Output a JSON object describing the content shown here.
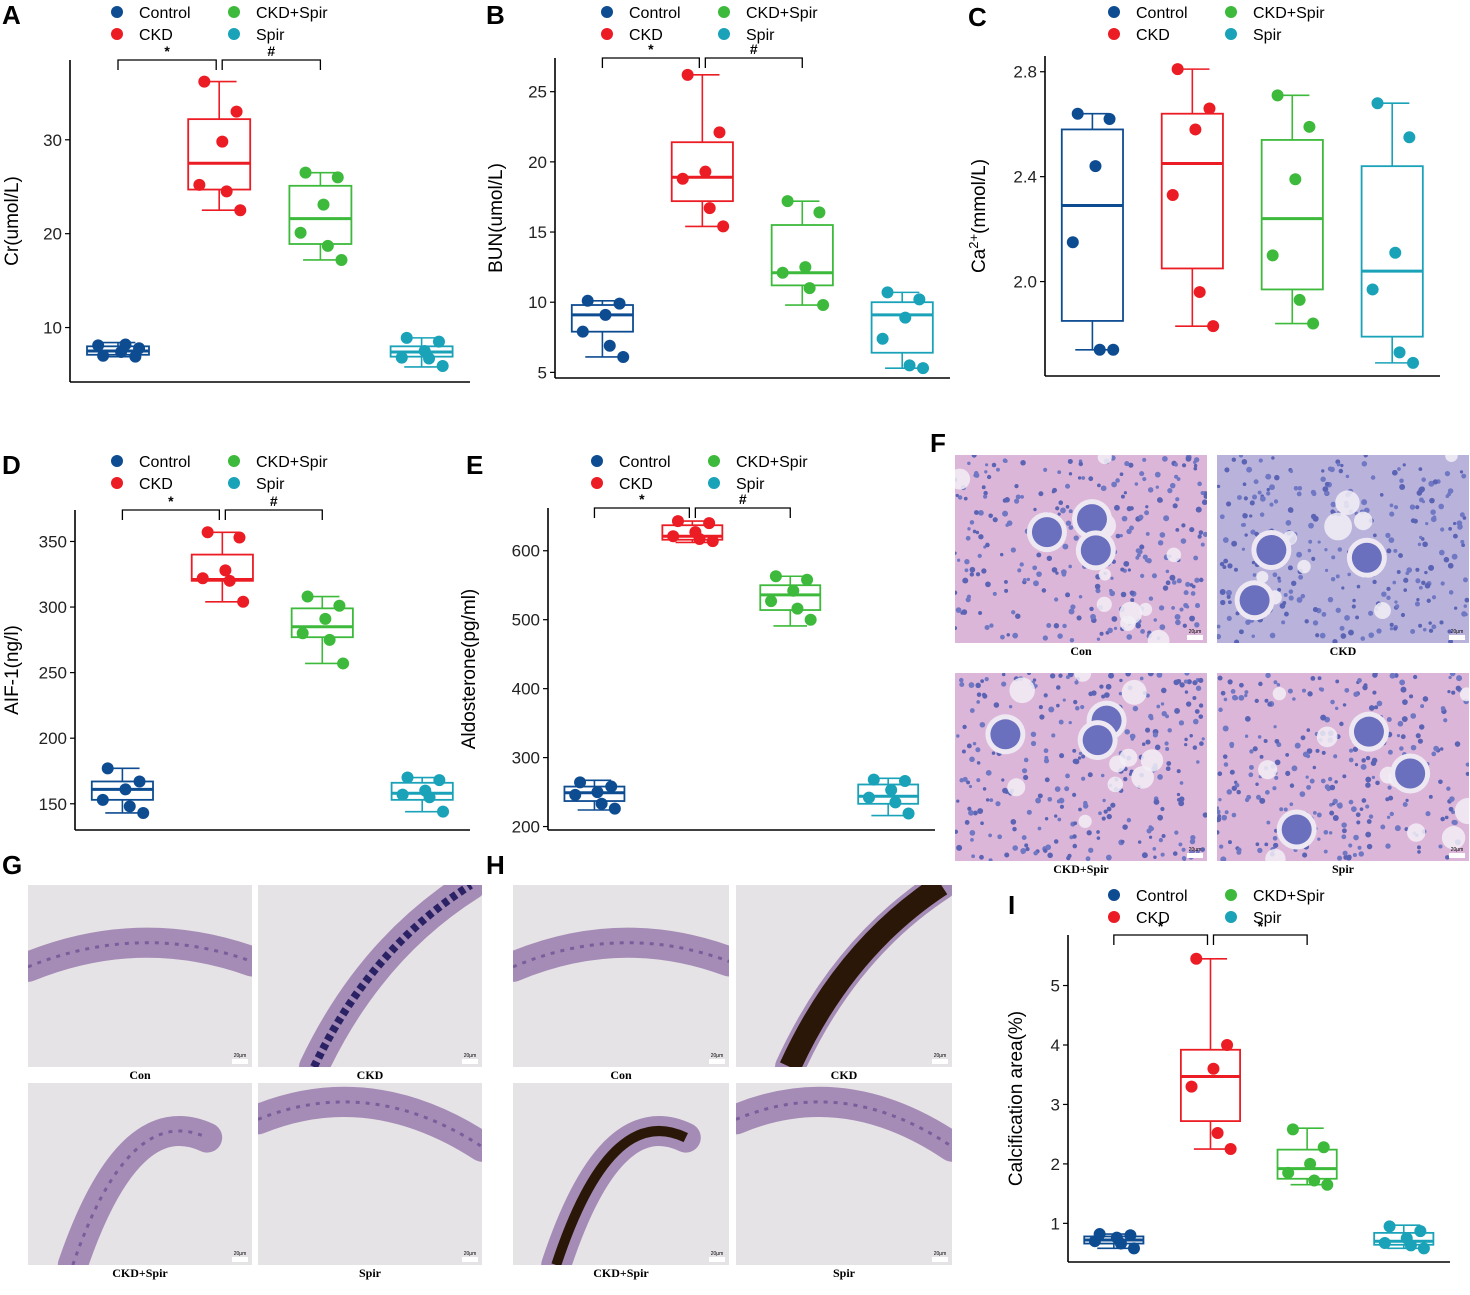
{
  "legend": {
    "groups": [
      "Control",
      "CKD",
      "CKD+Spir",
      "Spir"
    ],
    "colors": [
      "#0e4c92",
      "#ec1c24",
      "#3dba3c",
      "#1aa2b9"
    ]
  },
  "panels": {
    "A": "A",
    "B": "B",
    "C": "C",
    "D": "D",
    "E": "E",
    "F": "F",
    "G": "G",
    "H": "H",
    "I": "I"
  },
  "chart_data": [
    {
      "id": "A",
      "type": "box",
      "ylabel": "Cr(umol/L)",
      "ylim": [
        4.2,
        38.5
      ],
      "yticks": [
        10,
        20,
        30
      ],
      "groups": [
        {
          "name": "Control",
          "min": 6.9,
          "q1": 7.1,
          "median": 7.5,
          "q3": 8.0,
          "max": 8.4,
          "points": [
            7.0,
            6.9,
            7.4,
            8.1,
            8.2,
            7.8
          ]
        },
        {
          "name": "CKD",
          "min": 22.5,
          "q1": 24.7,
          "median": 27.5,
          "q3": 32.2,
          "max": 36.2,
          "points": [
            36.2,
            33.0,
            29.8,
            25.2,
            24.5,
            22.5
          ]
        },
        {
          "name": "CKD+Spir",
          "min": 17.2,
          "q1": 18.9,
          "median": 21.6,
          "q3": 25.1,
          "max": 26.5,
          "points": [
            26.5,
            26.0,
            23.1,
            20.1,
            18.7,
            17.2
          ]
        },
        {
          "name": "Spir",
          "min": 5.8,
          "q1": 6.9,
          "median": 7.4,
          "q3": 8.0,
          "max": 8.9,
          "points": [
            8.9,
            8.5,
            7.5,
            6.8,
            6.7,
            5.9
          ]
        }
      ],
      "annotations": [
        {
          "from": "Control",
          "to": "CKD",
          "label": "*"
        },
        {
          "from": "CKD",
          "to": "CKD+Spir",
          "label": "#"
        }
      ]
    },
    {
      "id": "B",
      "type": "box",
      "ylabel": "BUN(umol/L)",
      "ylim": [
        4.6,
        27.4
      ],
      "yticks": [
        5,
        10,
        15,
        20,
        25
      ],
      "groups": [
        {
          "name": "Control",
          "min": 6.1,
          "q1": 7.9,
          "median": 9.1,
          "q3": 9.8,
          "max": 10.1,
          "points": [
            10.1,
            9.9,
            9.1,
            7.9,
            6.9,
            6.1
          ]
        },
        {
          "name": "CKD",
          "min": 15.4,
          "q1": 17.2,
          "median": 18.9,
          "q3": 21.4,
          "max": 26.2,
          "points": [
            26.2,
            22.1,
            19.3,
            18.8,
            16.7,
            15.4
          ]
        },
        {
          "name": "CKD+Spir",
          "min": 9.8,
          "q1": 11.2,
          "median": 12.1,
          "q3": 15.5,
          "max": 17.2,
          "points": [
            17.2,
            16.4,
            12.5,
            12.1,
            11.0,
            9.8
          ]
        },
        {
          "name": "Spir",
          "min": 5.3,
          "q1": 6.4,
          "median": 9.1,
          "q3": 10.0,
          "max": 10.7,
          "points": [
            10.7,
            10.2,
            8.9,
            7.4,
            5.5,
            5.3
          ]
        }
      ],
      "annotations": [
        {
          "from": "Control",
          "to": "CKD",
          "label": "*"
        },
        {
          "from": "CKD",
          "to": "CKD+Spir",
          "label": "#"
        }
      ]
    },
    {
      "id": "C",
      "type": "box",
      "ylabel": "Ca2+(mmol/L)",
      "ylabel_base": "Ca",
      "ylabel_sup": "2+",
      "ylabel_rest": "(mmol/L)",
      "ylim": [
        1.64,
        2.86
      ],
      "yticks": [
        "2.0",
        "2.4",
        "2.8"
      ],
      "groups": [
        {
          "name": "Control",
          "min": 1.74,
          "q1": 1.85,
          "median": 2.29,
          "q3": 2.58,
          "max": 2.64,
          "points": [
            2.64,
            2.62,
            2.44,
            2.15,
            1.74,
            1.74
          ]
        },
        {
          "name": "CKD",
          "min": 1.83,
          "q1": 2.05,
          "median": 2.45,
          "q3": 2.64,
          "max": 2.81,
          "points": [
            2.81,
            2.66,
            2.58,
            2.33,
            1.96,
            1.83
          ]
        },
        {
          "name": "CKD+Spir",
          "min": 1.84,
          "q1": 1.97,
          "median": 2.24,
          "q3": 2.54,
          "max": 2.71,
          "points": [
            2.71,
            2.59,
            2.39,
            2.1,
            1.93,
            1.84
          ]
        },
        {
          "name": "Spir",
          "min": 1.69,
          "q1": 1.79,
          "median": 2.04,
          "q3": 2.44,
          "max": 2.68,
          "points": [
            2.68,
            2.55,
            2.11,
            1.97,
            1.73,
            1.69
          ]
        }
      ],
      "annotations": []
    },
    {
      "id": "D",
      "type": "box",
      "ylabel": "AIF-1(ng/l)",
      "ylim": [
        130,
        374
      ],
      "yticks": [
        150,
        200,
        250,
        300,
        350
      ],
      "groups": [
        {
          "name": "Control",
          "min": 143,
          "q1": 153,
          "median": 161,
          "q3": 167,
          "max": 177,
          "points": [
            177,
            167,
            161,
            153,
            148,
            143
          ]
        },
        {
          "name": "CKD",
          "min": 304,
          "q1": 320,
          "median": 321,
          "q3": 340,
          "max": 357,
          "points": [
            357,
            353,
            328,
            322,
            320,
            304
          ]
        },
        {
          "name": "CKD+Spir",
          "min": 257,
          "q1": 277,
          "median": 285,
          "q3": 299,
          "max": 308,
          "points": [
            308,
            301,
            291,
            280,
            275,
            257
          ]
        },
        {
          "name": "Spir",
          "min": 144,
          "q1": 153,
          "median": 158,
          "q3": 166,
          "max": 170,
          "points": [
            170,
            168,
            160,
            157,
            155,
            144
          ]
        }
      ],
      "annotations": [
        {
          "from": "Control",
          "to": "CKD",
          "label": "*"
        },
        {
          "from": "CKD",
          "to": "CKD+Spir",
          "label": "#"
        }
      ]
    },
    {
      "id": "E",
      "type": "box",
      "ylabel": "Aldosterone(pg/ml)",
      "ylim": [
        195,
        662
      ],
      "yticks": [
        200,
        300,
        400,
        500,
        600
      ],
      "groups": [
        {
          "name": "Control",
          "min": 224,
          "q1": 237,
          "median": 249,
          "q3": 258,
          "max": 267,
          "points": [
            264,
            258,
            250,
            246,
            233,
            226
          ]
        },
        {
          "name": "CKD",
          "min": 612,
          "q1": 616,
          "median": 621,
          "q3": 637,
          "max": 643,
          "points": [
            643,
            640,
            627,
            621,
            617,
            614
          ]
        },
        {
          "name": "CKD+Spir",
          "min": 491,
          "q1": 514,
          "median": 536,
          "q3": 550,
          "max": 563,
          "points": [
            563,
            558,
            542,
            527,
            516,
            500
          ]
        },
        {
          "name": "Spir",
          "min": 216,
          "q1": 233,
          "median": 244,
          "q3": 261,
          "max": 270,
          "points": [
            268,
            266,
            253,
            242,
            235,
            219
          ]
        }
      ],
      "annotations": [
        {
          "from": "Control",
          "to": "CKD",
          "label": "*"
        },
        {
          "from": "CKD",
          "to": "CKD+Spir",
          "label": "#"
        }
      ]
    },
    {
      "id": "I",
      "type": "box",
      "ylabel": "Calcification area(%)",
      "ylim": [
        0.35,
        5.85
      ],
      "yticks": [
        1,
        2,
        3,
        4,
        5
      ],
      "groups": [
        {
          "name": "Control",
          "min": 0.58,
          "q1": 0.66,
          "median": 0.72,
          "q3": 0.78,
          "max": 0.82,
          "points": [
            0.82,
            0.8,
            0.76,
            0.7,
            0.66,
            0.58
          ]
        },
        {
          "name": "CKD",
          "min": 2.25,
          "q1": 2.72,
          "median": 3.47,
          "q3": 3.92,
          "max": 5.45,
          "points": [
            5.45,
            4.0,
            3.6,
            3.3,
            2.52,
            2.25
          ]
        },
        {
          "name": "CKD+Spir",
          "min": 1.65,
          "q1": 1.75,
          "median": 1.92,
          "q3": 2.24,
          "max": 2.6,
          "points": [
            2.58,
            2.28,
            2.0,
            1.85,
            1.72,
            1.65
          ]
        },
        {
          "name": "Spir",
          "min": 0.58,
          "q1": 0.64,
          "median": 0.7,
          "q3": 0.84,
          "max": 0.97,
          "points": [
            0.95,
            0.87,
            0.75,
            0.67,
            0.63,
            0.58
          ]
        }
      ],
      "annotations": [
        {
          "from": "Control",
          "to": "CKD",
          "label": "*"
        },
        {
          "from": "CKD",
          "to": "CKD+Spir",
          "label": "*"
        }
      ]
    }
  ],
  "micrographs": {
    "F": {
      "captions": [
        "Con",
        "CKD",
        "CKD+Spir",
        "Spir"
      ],
      "scale_bar": "20μm",
      "style": "he-kidney"
    },
    "G": {
      "captions": [
        "Con",
        "CKD",
        "CKD+Spir",
        "Spir"
      ],
      "scale_bar": "20μm",
      "style": "he-aorta"
    },
    "H": {
      "captions": [
        "Con",
        "CKD",
        "CKD+Spir",
        "Spir"
      ],
      "scale_bar": "20μm",
      "style": "vonkossa-aorta"
    }
  }
}
